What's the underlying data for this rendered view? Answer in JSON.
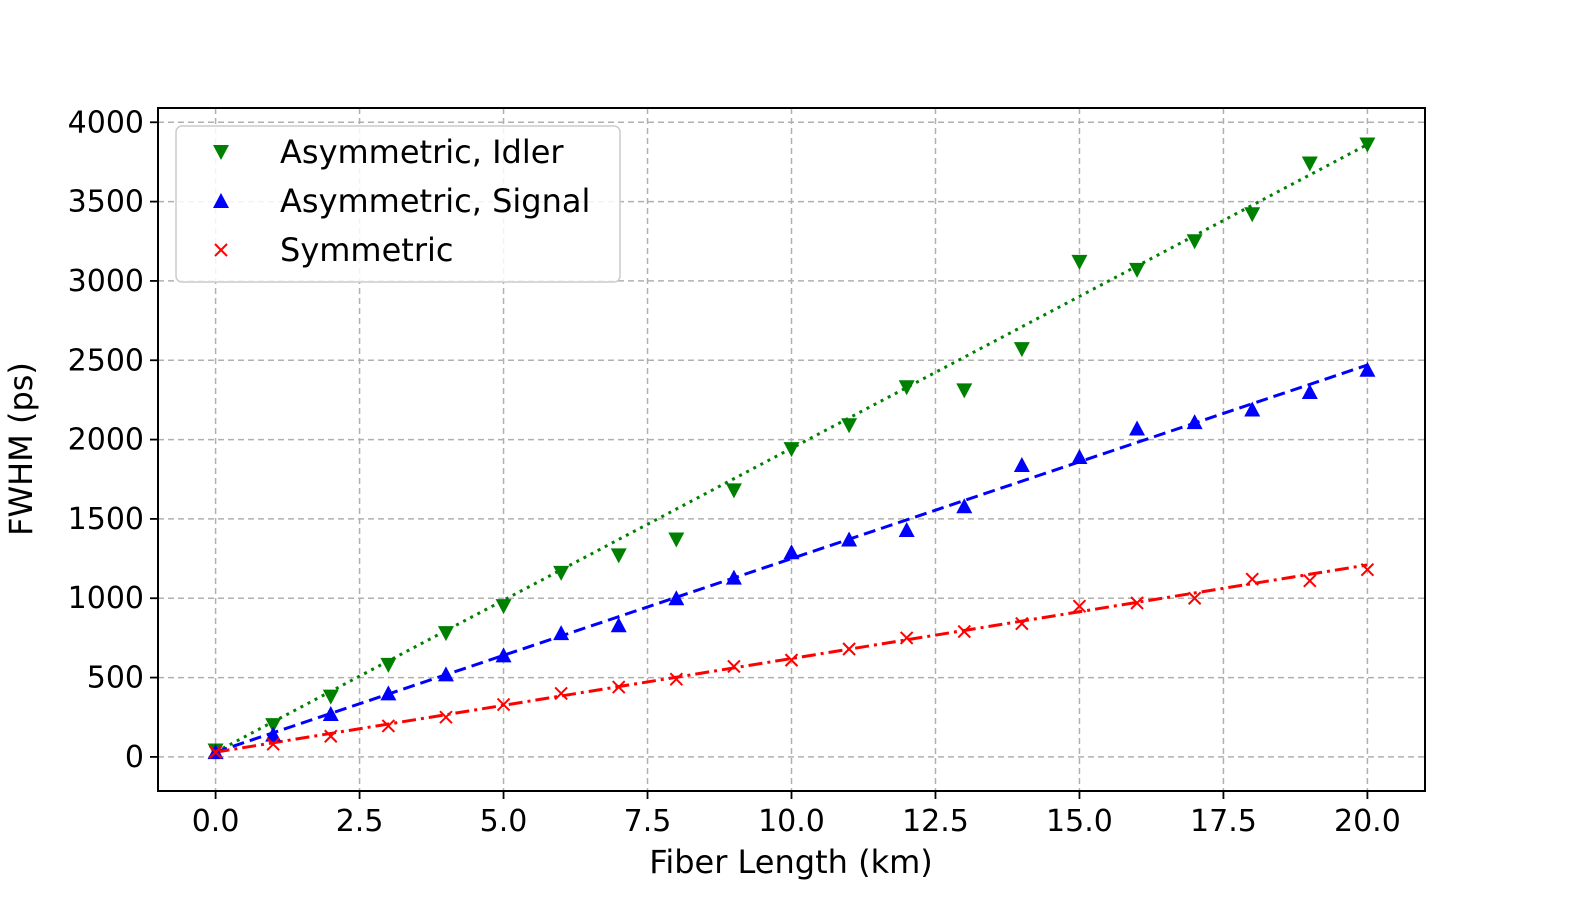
{
  "chart_data": {
    "type": "scatter",
    "xlabel": "Fiber Length (km)",
    "ylabel": "FWHM (ps)",
    "xlim": [
      -1,
      21
    ],
    "ylim": [
      -215,
      4090
    ],
    "xticks": [
      0,
      2.5,
      5,
      7.5,
      10,
      12.5,
      15,
      17.5,
      20
    ],
    "xtick_labels": [
      "0.0",
      "2.5",
      "5.0",
      "7.5",
      "10.0",
      "12.5",
      "15.0",
      "17.5",
      "20.0"
    ],
    "yticks": [
      0,
      500,
      1000,
      1500,
      2000,
      2500,
      3000,
      3500,
      4000
    ],
    "ytick_labels": [
      "0",
      "500",
      "1000",
      "1500",
      "2000",
      "2500",
      "3000",
      "3500",
      "4000"
    ],
    "grid": true,
    "legend_position": "top-left",
    "x": [
      0,
      1,
      2,
      3,
      4,
      5,
      6,
      7,
      8,
      9,
      10,
      11,
      12,
      13,
      14,
      15,
      16,
      17,
      18,
      19,
      20
    ],
    "series": [
      {
        "name": "Asymmetric, Idler",
        "color": "#008000",
        "marker": "triangle-down",
        "values": [
          40,
          200,
          380,
          580,
          780,
          950,
          1160,
          1270,
          1370,
          1680,
          1940,
          2090,
          2330,
          2310,
          2570,
          3120,
          3070,
          3250,
          3420,
          3740,
          3860
        ],
        "fit": {
          "style": "dotted",
          "x": [
            0,
            20
          ],
          "y": [
            30,
            3860
          ]
        }
      },
      {
        "name": "Asymmetric, Signal",
        "color": "#0000ff",
        "marker": "triangle-up",
        "values": [
          30,
          140,
          270,
          400,
          520,
          640,
          780,
          830,
          1000,
          1130,
          1290,
          1370,
          1430,
          1580,
          1840,
          1890,
          2070,
          2110,
          2190,
          2300,
          2440
        ],
        "fit": {
          "style": "dashed",
          "x": [
            0,
            20
          ],
          "y": [
            30,
            2470
          ]
        }
      },
      {
        "name": "Symmetric",
        "color": "#ff0000",
        "marker": "x",
        "values": [
          30,
          80,
          130,
          195,
          250,
          330,
          400,
          440,
          490,
          570,
          610,
          680,
          750,
          790,
          840,
          950,
          970,
          1000,
          1120,
          1110,
          1180
        ],
        "fit": {
          "style": "dashdot",
          "x": [
            0,
            20
          ],
          "y": [
            30,
            1210
          ]
        }
      }
    ]
  }
}
